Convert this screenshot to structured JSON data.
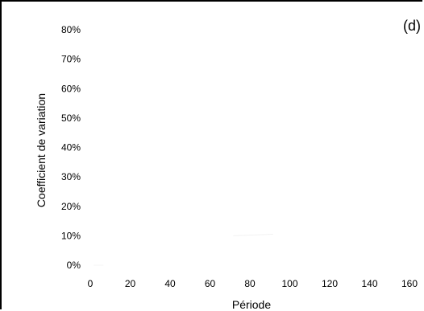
{
  "chart_data": {
    "type": "line",
    "panel_label": "(d)",
    "xlabel": "Période",
    "ylabel": "Coefficient de variation",
    "x_ticks": [
      "0",
      "20",
      "40",
      "60",
      "80",
      "100",
      "120",
      "140",
      "160"
    ],
    "y_ticks": [
      "0%",
      "10%",
      "20%",
      "30%",
      "40%",
      "50%",
      "60%",
      "70%",
      "80%"
    ],
    "xlim": [
      0,
      160
    ],
    "ylim": [
      0,
      0.8
    ],
    "grid": false,
    "series": [
      {
        "color": "#f4f4f4",
        "x": [
          0,
          5
        ],
        "y": [
          0.0,
          0.0
        ]
      },
      {
        "color": "#f2f2f2",
        "x": [
          70,
          90
        ],
        "y": [
          0.1,
          0.105
        ]
      }
    ]
  }
}
